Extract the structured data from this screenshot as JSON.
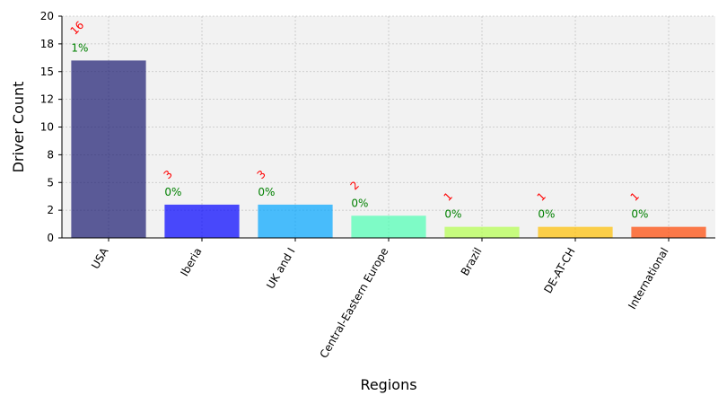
{
  "chart_data": {
    "type": "bar",
    "title": "",
    "xlabel": "Regions",
    "ylabel": "Driver Count",
    "ylim": [
      0,
      20
    ],
    "y_ticks": [
      0,
      2.5,
      5,
      7.5,
      10,
      12.5,
      15,
      17.5,
      20
    ],
    "y_tick_labels": [
      "0",
      "2",
      "5",
      "8",
      "10",
      "12",
      "15",
      "18",
      "20"
    ],
    "grid": true,
    "categories": [
      "USA",
      "Iberia",
      "UK and I",
      "Central-Eastern Europe",
      "Brazil",
      "DE-AT-CH",
      "International"
    ],
    "values": [
      16,
      3,
      3,
      2,
      1,
      1,
      1
    ],
    "value_labels": [
      "16",
      "3",
      "3",
      "2",
      "1",
      "1",
      "1"
    ],
    "percent_labels": [
      "1%",
      "0%",
      "0%",
      "0%",
      "0%",
      "0%",
      "0%"
    ],
    "colors": [
      "#191970",
      "#0000ff",
      "#00a5ff",
      "#4dffb3",
      "#b3ff4d",
      "#ffbf00",
      "#ff4500"
    ],
    "bar_opacity": 0.7,
    "plot_background": "#f2f2f2",
    "value_label_color": "#ff0000",
    "percent_label_color": "#008000"
  }
}
